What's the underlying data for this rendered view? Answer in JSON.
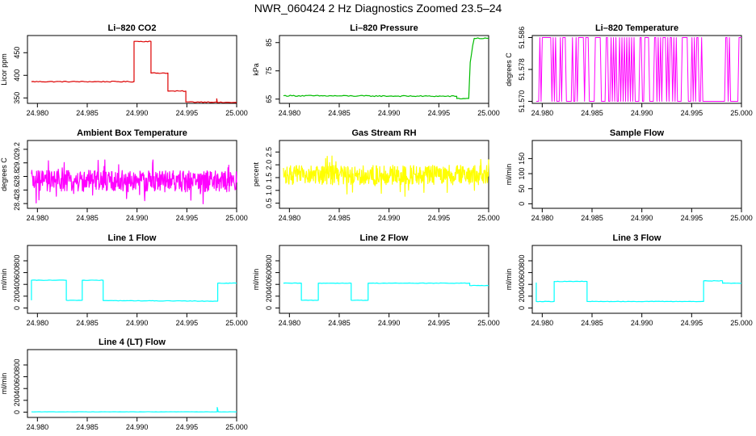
{
  "title": "NWR_060424  2 Hz Diagnostics Zoomed 23.5–24",
  "chart_data": [
    {
      "type": "line",
      "title": "Li–820 CO2",
      "ylabel": "Licor ppm",
      "color": "#dd0000",
      "xlim": [
        24.979,
        25.0
      ],
      "ylim": [
        338,
        488
      ],
      "xticks": [
        24.98,
        24.985,
        24.99,
        24.995,
        25.0
      ],
      "xtick_labels": [
        "24.980",
        "24.985",
        "24.990",
        "24.995",
        "25.000"
      ],
      "yticks": [
        350,
        400,
        450
      ],
      "ytick_labels": [
        "350",
        "400",
        "450"
      ],
      "style": "step",
      "noise": 1,
      "points": [
        [
          24.9794,
          386
        ],
        [
          24.9897,
          386
        ],
        [
          24.9897,
          475
        ],
        [
          24.9914,
          475
        ],
        [
          24.9914,
          405
        ],
        [
          24.9931,
          405
        ],
        [
          24.9931,
          365
        ],
        [
          24.9949,
          365
        ],
        [
          24.9949,
          341
        ],
        [
          24.998,
          341
        ],
        [
          24.998,
          348
        ],
        [
          24.99805,
          340
        ],
        [
          25.0,
          340
        ]
      ]
    },
    {
      "type": "line",
      "title": "Li–820 Pressure",
      "ylabel": "kPa",
      "color": "#00bb00",
      "xlim": [
        24.979,
        25.0
      ],
      "ylim": [
        63.5,
        87.5
      ],
      "xticks": [
        24.98,
        24.985,
        24.99,
        24.995,
        25.0
      ],
      "xtick_labels": [
        "24.980",
        "24.985",
        "24.990",
        "24.995",
        "25.000"
      ],
      "yticks": [
        65,
        75,
        85
      ],
      "ytick_labels": [
        "65",
        "75",
        "85"
      ],
      "style": "step",
      "noise": 0.2,
      "points": [
        [
          24.9794,
          66.2
        ],
        [
          24.9968,
          66.0
        ],
        [
          24.9968,
          65.2
        ],
        [
          24.998,
          65.2
        ],
        [
          24.99815,
          78
        ],
        [
          24.9984,
          84
        ],
        [
          24.99855,
          86.5
        ],
        [
          25.0,
          86.5
        ]
      ]
    },
    {
      "type": "line",
      "title": "Li–820 Temperature",
      "ylabel": "degrees C",
      "color": "#ff00ff",
      "xlim": [
        24.979,
        25.0
      ],
      "ylim": [
        51.5695,
        51.5865
      ],
      "xticks": [
        24.98,
        24.985,
        24.99,
        24.995,
        25.0
      ],
      "xtick_labels": [
        "24.980",
        "24.985",
        "24.990",
        "24.995",
        "25.000"
      ],
      "yticks": [
        51.57,
        51.578,
        51.586
      ],
      "ytick_labels": [
        "51.570",
        "51.578",
        "51.586"
      ],
      "style": "binary",
      "levels": [
        51.57,
        51.586
      ],
      "points": [
        [
          24.9794,
          51.57
        ],
        [
          25.0,
          51.57
        ]
      ]
    },
    {
      "type": "line",
      "title": "Ambient Box Temperature",
      "ylabel": "degrees C",
      "color": "#ff00ff",
      "xlim": [
        24.979,
        25.0
      ],
      "ylim": [
        28.33,
        29.33
      ],
      "xticks": [
        24.98,
        24.985,
        24.99,
        24.995,
        25.0
      ],
      "xtick_labels": [
        "24.980",
        "24.985",
        "24.990",
        "24.995",
        "25.000"
      ],
      "yticks": [
        28.4,
        28.6,
        28.8,
        29.0,
        29.2
      ],
      "ytick_labels": [
        "28.4",
        "28.6",
        "28.8",
        "29.0",
        "29.2"
      ],
      "style": "noise",
      "noise": 0.16,
      "points": [
        [
          24.9794,
          28.73
        ],
        [
          25.0,
          28.73
        ]
      ]
    },
    {
      "type": "line",
      "title": "Gas Stream RH",
      "ylabel": "percent",
      "color": "#ffff00",
      "xlim": [
        24.979,
        25.0
      ],
      "ylim": [
        0.3,
        2.95
      ],
      "xticks": [
        24.98,
        24.985,
        24.99,
        24.995,
        25.0
      ],
      "xtick_labels": [
        "24.980",
        "24.985",
        "24.990",
        "24.995",
        "25.000"
      ],
      "yticks": [
        0.5,
        1.0,
        1.5,
        2.0,
        2.5
      ],
      "ytick_labels": [
        "0.5",
        "1.0",
        "1.5",
        "2.0",
        "2.5"
      ],
      "style": "noise",
      "noise": 0.38,
      "points": [
        [
          24.9794,
          1.6
        ],
        [
          25.0,
          1.6
        ]
      ]
    },
    {
      "type": "line",
      "title": "Sample Flow",
      "ylabel": "ml/min",
      "color": "#00ffff",
      "xlim": [
        24.979,
        25.0
      ],
      "ylim": [
        -15,
        210
      ],
      "xticks": [
        24.98,
        24.985,
        24.99,
        24.995,
        25.0
      ],
      "xtick_labels": [
        "24.980",
        "24.985",
        "24.990",
        "24.995",
        "25.000"
      ],
      "yticks": [
        0,
        50,
        100,
        150
      ],
      "ytick_labels": [
        "0",
        "50",
        "100",
        "150"
      ],
      "style": "empty",
      "points": []
    },
    {
      "type": "line",
      "title": "Line 1 Flow",
      "ylabel": "ml/min",
      "color": "#00ffff",
      "xlim": [
        24.979,
        25.0
      ],
      "ylim": [
        -90,
        1060
      ],
      "xticks": [
        24.98,
        24.985,
        24.99,
        24.995,
        25.0
      ],
      "xtick_labels": [
        "24.980",
        "24.985",
        "24.990",
        "24.995",
        "25.000"
      ],
      "yticks": [
        0,
        200,
        400,
        600,
        800
      ],
      "ytick_labels": [
        "0",
        "200",
        "400",
        "600",
        "800"
      ],
      "style": "step",
      "noise": 4,
      "points": [
        [
          24.9794,
          130
        ],
        [
          24.9794,
          470
        ],
        [
          24.9829,
          470
        ],
        [
          24.9829,
          130
        ],
        [
          24.9845,
          130
        ],
        [
          24.9845,
          470
        ],
        [
          24.9866,
          470
        ],
        [
          24.9866,
          125
        ],
        [
          24.9981,
          115
        ],
        [
          24.9981,
          420
        ],
        [
          25.0,
          420
        ]
      ]
    },
    {
      "type": "line",
      "title": "Line 2 Flow",
      "ylabel": "ml/min",
      "color": "#00ffff",
      "xlim": [
        24.979,
        25.0
      ],
      "ylim": [
        -90,
        1060
      ],
      "xticks": [
        24.98,
        24.985,
        24.99,
        24.995,
        25.0
      ],
      "xtick_labels": [
        "24.980",
        "24.985",
        "24.990",
        "24.995",
        "25.000"
      ],
      "yticks": [
        0,
        200,
        400,
        600,
        800
      ],
      "ytick_labels": [
        "0",
        "200",
        "400",
        "600",
        "800"
      ],
      "style": "step",
      "noise": 4,
      "points": [
        [
          24.9794,
          420
        ],
        [
          24.9812,
          420
        ],
        [
          24.9812,
          130
        ],
        [
          24.9829,
          130
        ],
        [
          24.9829,
          420
        ],
        [
          24.9862,
          420
        ],
        [
          24.9862,
          130
        ],
        [
          24.9879,
          130
        ],
        [
          24.9879,
          420
        ],
        [
          24.9981,
          420
        ],
        [
          24.9981,
          380
        ],
        [
          25.0,
          380
        ]
      ]
    },
    {
      "type": "line",
      "title": "Line 3 Flow",
      "ylabel": "ml/min",
      "color": "#00ffff",
      "xlim": [
        24.979,
        25.0
      ],
      "ylim": [
        -90,
        1060
      ],
      "xticks": [
        24.98,
        24.985,
        24.99,
        24.995,
        25.0
      ],
      "xtick_labels": [
        "24.980",
        "24.985",
        "24.990",
        "24.995",
        "25.000"
      ],
      "yticks": [
        0,
        200,
        400,
        600,
        800
      ],
      "ytick_labels": [
        "0",
        "200",
        "400",
        "600",
        "800"
      ],
      "style": "step",
      "noise": 4,
      "points": [
        [
          24.9794,
          430
        ],
        [
          24.9794,
          110
        ],
        [
          24.9812,
          110
        ],
        [
          24.9812,
          450
        ],
        [
          24.9845,
          450
        ],
        [
          24.9845,
          110
        ],
        [
          24.9962,
          110
        ],
        [
          24.9962,
          460
        ],
        [
          24.9981,
          460
        ],
        [
          24.9981,
          420
        ],
        [
          25.0,
          420
        ]
      ]
    },
    {
      "type": "line",
      "title": "Line 4 (LT) Flow",
      "ylabel": "ml/min",
      "color": "#00ffff",
      "xlim": [
        24.979,
        25.0
      ],
      "ylim": [
        -90,
        1060
      ],
      "xticks": [
        24.98,
        24.985,
        24.99,
        24.995,
        25.0
      ],
      "xtick_labels": [
        "24.980",
        "24.985",
        "24.990",
        "24.995",
        "25.000"
      ],
      "yticks": [
        0,
        200,
        400,
        600,
        800
      ],
      "ytick_labels": [
        "0",
        "200",
        "400",
        "600",
        "800"
      ],
      "style": "step",
      "noise": 2,
      "points": [
        [
          24.9794,
          5
        ],
        [
          24.99805,
          5
        ],
        [
          24.99805,
          80
        ],
        [
          24.99815,
          5
        ],
        [
          25.0,
          5
        ]
      ]
    }
  ]
}
